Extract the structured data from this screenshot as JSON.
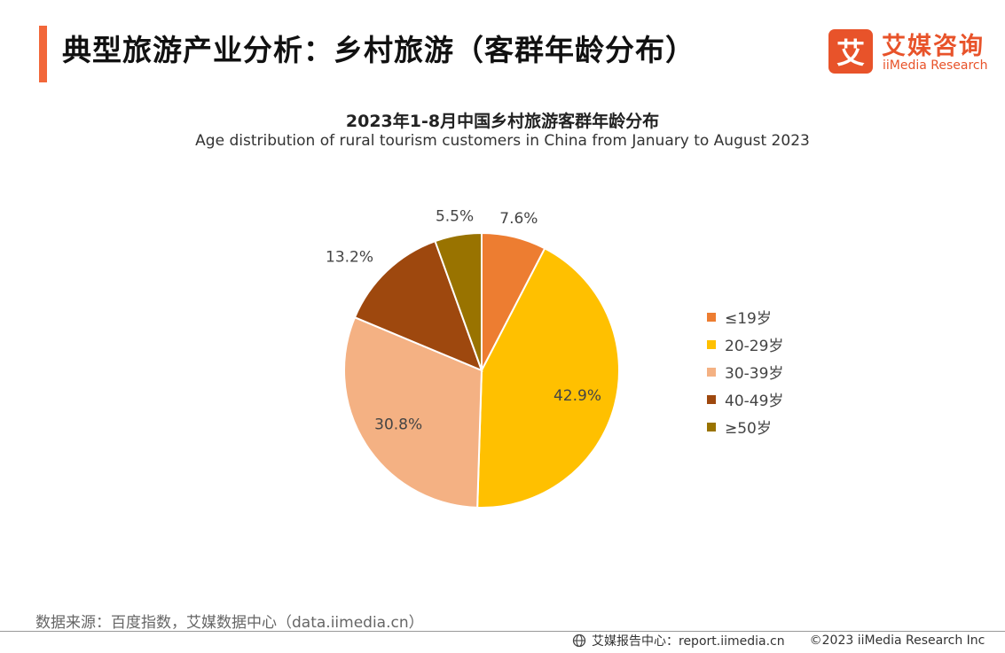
{
  "header": {
    "title": "典型旅游产业分析：乡村旅游（客群年龄分布）",
    "logo_icon_text": "艾",
    "logo_cn": "艾媒咨询",
    "logo_en": "iiMedia Research",
    "accent_color": "#F2673A"
  },
  "chart_data": {
    "type": "pie",
    "title": "2023年1-8月中国乡村旅游客群年龄分布",
    "subtitle": "Age distribution of rural tourism customers in China from January to August 2023",
    "legend_position": "right",
    "slices": [
      {
        "label": "≤19岁",
        "value": 7.6,
        "display": "7.6%",
        "color": "#ED7D31"
      },
      {
        "label": "20-29岁",
        "value": 42.9,
        "display": "42.9%",
        "color": "#FFC000"
      },
      {
        "label": "30-39岁",
        "value": 30.8,
        "display": "30.8%",
        "color": "#F4B183"
      },
      {
        "label": "40-49岁",
        "value": 13.2,
        "display": "13.2%",
        "color": "#9E480E"
      },
      {
        "label": "≥50岁",
        "value": 5.5,
        "display": "5.5%",
        "color": "#997300"
      }
    ]
  },
  "footer": {
    "source": "数据来源：百度指数，艾媒数据中心（data.iimedia.cn）",
    "report_center": "艾媒报告中心：report.iimedia.cn",
    "copyright": "©2023  iiMedia Research  Inc",
    "globe_icon": "globe-icon"
  }
}
